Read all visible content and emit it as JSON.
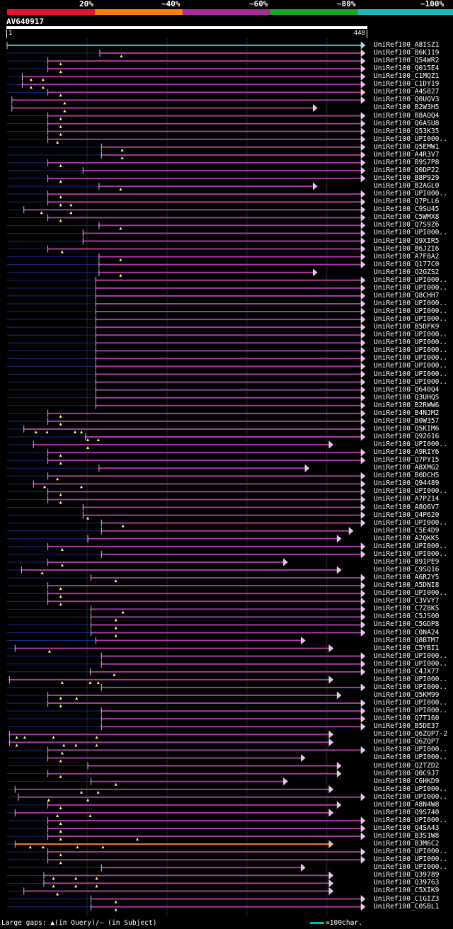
{
  "legend": [
    {
      "label": "20%",
      "color": "#e8142c"
    },
    {
      "label": "~40%",
      "color": "#ff7f0e"
    },
    {
      "label": "~60%",
      "color": "#a52a9c"
    },
    {
      "label": "~80%",
      "color": "#1ea51e"
    },
    {
      "label": "~100%",
      "color": "#1cb8c0"
    }
  ],
  "query": {
    "name": "AV640917",
    "start": "1",
    "end": "448",
    "length": 448
  },
  "footer": {
    "gaps_text": "Large gaps: ▲(in Query)/– (in Subject)",
    "scale_text": "=100char."
  },
  "colors": {
    "line": "#a43ca0",
    "best": "#1ec8c8",
    "orange": "#f08020",
    "dash": "#1a2a7a",
    "tri": "#ffff80",
    "arrow": "#e8c0f0"
  },
  "hits": [
    {
      "name": "UniRef100_A8ISZ1",
      "start": 0,
      "end": 448,
      "color": "best",
      "lead": 0,
      "tris": []
    },
    {
      "name": "UniRef100_B6K119",
      "start": 116,
      "end": 448,
      "color": "line",
      "lead": 1,
      "tris": [
        143
      ]
    },
    {
      "name": "UniRef100_Q54WR2",
      "start": 51,
      "end": 448,
      "color": "line",
      "lead": 1,
      "tris": [
        67
      ]
    },
    {
      "name": "UniRef100_Q015E4",
      "start": 51,
      "end": 448,
      "color": "line",
      "lead": 1,
      "tris": [
        67
      ]
    },
    {
      "name": "UniRef100_C1MQZ1",
      "start": 19,
      "end": 448,
      "color": "line",
      "lead": 1,
      "tris": [
        30,
        45
      ]
    },
    {
      "name": "UniRef100_C1DY19",
      "start": 19,
      "end": 448,
      "color": "line",
      "lead": 1,
      "tris": [
        30,
        45
      ]
    },
    {
      "name": "UniRef100_A4S027",
      "start": 51,
      "end": 448,
      "color": "line",
      "lead": 1,
      "tris": [
        67
      ]
    },
    {
      "name": "UniRef100_Q0UQV3",
      "start": 6,
      "end": 448,
      "color": "line",
      "lead": 0,
      "tris": [
        72
      ]
    },
    {
      "name": "UniRef100_B2W3H5",
      "start": 6,
      "end": 388,
      "color": "line",
      "lead": 0,
      "tris": [
        72
      ]
    },
    {
      "name": "UniRef100_B8AQQ4",
      "start": 51,
      "end": 448,
      "color": "line",
      "lead": 1,
      "tris": [
        67
      ]
    },
    {
      "name": "UniRef100_Q6ASU8",
      "start": 51,
      "end": 448,
      "color": "line",
      "lead": 1,
      "tris": [
        67
      ]
    },
    {
      "name": "UniRef100_Q53K35",
      "start": 51,
      "end": 448,
      "color": "line",
      "lead": 1,
      "tris": [
        67
      ]
    },
    {
      "name": "UniRef100_UPI000..",
      "start": 51,
      "end": 448,
      "color": "line",
      "lead": 1,
      "tris": [
        63
      ]
    },
    {
      "name": "UniRef100_Q5EMW1",
      "start": 118,
      "end": 448,
      "color": "line",
      "lead": 1,
      "tris": [
        144
      ]
    },
    {
      "name": "UniRef100_A4R3V7",
      "start": 118,
      "end": 448,
      "color": "line",
      "lead": 1,
      "tris": [
        144
      ]
    },
    {
      "name": "UniRef100_B9S7P8",
      "start": 51,
      "end": 448,
      "color": "line",
      "lead": 1,
      "tris": [
        67
      ]
    },
    {
      "name": "UniRef100_Q0DP22",
      "start": 95,
      "end": 448,
      "color": "line",
      "lead": 1,
      "tris": []
    },
    {
      "name": "UniRef100_B8P929",
      "start": 51,
      "end": 448,
      "color": "line",
      "lead": 1,
      "tris": [
        67
      ]
    },
    {
      "name": "UniRef100_B2AGL0",
      "start": 115,
      "end": 388,
      "color": "line",
      "lead": 1,
      "tris": [
        142
      ]
    },
    {
      "name": "UniRef100_UPI000..",
      "start": 51,
      "end": 448,
      "color": "line",
      "lead": 1,
      "tris": [
        67
      ]
    },
    {
      "name": "UniRef100_Q7PLL6",
      "start": 51,
      "end": 448,
      "color": "line",
      "lead": 1,
      "tris": [
        67,
        80
      ]
    },
    {
      "name": "UniRef100_C9SU45",
      "start": 21,
      "end": 448,
      "color": "line",
      "lead": 1,
      "tris": [
        43,
        80
      ]
    },
    {
      "name": "UniRef100_C5WMX8",
      "start": 51,
      "end": 448,
      "color": "line",
      "lead": 1,
      "tris": [
        67
      ]
    },
    {
      "name": "UniRef100_Q7S9Z6",
      "start": 115,
      "end": 448,
      "color": "line",
      "lead": 1,
      "tris": [
        142
      ]
    },
    {
      "name": "UniRef100_UPI000..",
      "start": 95,
      "end": 448,
      "color": "line",
      "lead": 1,
      "tris": []
    },
    {
      "name": "UniRef100_Q9XIR5",
      "start": 95,
      "end": 448,
      "color": "line",
      "lead": 1,
      "tris": []
    },
    {
      "name": "UniRef100_B6JZI6",
      "start": 51,
      "end": 448,
      "color": "line",
      "lead": 1,
      "tris": [
        69
      ]
    },
    {
      "name": "UniRef100_A7F8A2",
      "start": 115,
      "end": 448,
      "color": "line",
      "lead": 1,
      "tris": [
        142
      ]
    },
    {
      "name": "UniRef100_Q177C0",
      "start": 115,
      "end": 448,
      "color": "line",
      "lead": 1,
      "tris": []
    },
    {
      "name": "UniRef100_Q2GZS2",
      "start": 115,
      "end": 388,
      "color": "line",
      "lead": 1,
      "tris": [
        142
      ]
    },
    {
      "name": "UniRef100_UPI000..",
      "start": 111,
      "end": 448,
      "color": "line",
      "lead": 1,
      "tris": []
    },
    {
      "name": "UniRef100_UPI000..",
      "start": 111,
      "end": 448,
      "color": "line",
      "lead": 1,
      "tris": []
    },
    {
      "name": "UniRef100_Q8CHH7",
      "start": 111,
      "end": 448,
      "color": "line",
      "lead": 1,
      "tris": []
    },
    {
      "name": "UniRef100_UPI000..",
      "start": 111,
      "end": 448,
      "color": "line",
      "lead": 1,
      "tris": []
    },
    {
      "name": "UniRef100_UPI000..",
      "start": 111,
      "end": 448,
      "color": "line",
      "lead": 1,
      "tris": []
    },
    {
      "name": "UniRef100_UPI000..",
      "start": 111,
      "end": 448,
      "color": "line",
      "lead": 1,
      "tris": []
    },
    {
      "name": "UniRef100_B5DFK9",
      "start": 111,
      "end": 448,
      "color": "line",
      "lead": 1,
      "tris": []
    },
    {
      "name": "UniRef100_UPI000..",
      "start": 111,
      "end": 448,
      "color": "line",
      "lead": 1,
      "tris": []
    },
    {
      "name": "UniRef100_UPI000..",
      "start": 111,
      "end": 448,
      "color": "line",
      "lead": 1,
      "tris": []
    },
    {
      "name": "UniRef100_UPI000..",
      "start": 111,
      "end": 448,
      "color": "line",
      "lead": 1,
      "tris": []
    },
    {
      "name": "UniRef100_UPI000..",
      "start": 111,
      "end": 448,
      "color": "line",
      "lead": 1,
      "tris": []
    },
    {
      "name": "UniRef100_UPI000..",
      "start": 111,
      "end": 448,
      "color": "line",
      "lead": 1,
      "tris": []
    },
    {
      "name": "UniRef100_UPI000..",
      "start": 111,
      "end": 448,
      "color": "line",
      "lead": 1,
      "tris": []
    },
    {
      "name": "UniRef100_UPI000..",
      "start": 111,
      "end": 448,
      "color": "line",
      "lead": 1,
      "tris": []
    },
    {
      "name": "UniRef100_Q640Q4",
      "start": 111,
      "end": 448,
      "color": "line",
      "lead": 1,
      "tris": []
    },
    {
      "name": "UniRef100_Q3UHQ5",
      "start": 111,
      "end": 448,
      "color": "line",
      "lead": 1,
      "tris": []
    },
    {
      "name": "UniRef100_B2RWW6",
      "start": 111,
      "end": 448,
      "color": "line",
      "lead": 1,
      "tris": []
    },
    {
      "name": "UniRef100_B4NJM2",
      "start": 51,
      "end": 448,
      "color": "line",
      "lead": 1,
      "tris": [
        67
      ]
    },
    {
      "name": "UniRef100_B0W357",
      "start": 51,
      "end": 448,
      "color": "line",
      "lead": 1,
      "tris": [
        67
      ]
    },
    {
      "name": "UniRef100_Q5KIM6",
      "start": 21,
      "end": 448,
      "color": "line",
      "lead": 1,
      "tris": [
        36,
        50,
        85,
        93
      ]
    },
    {
      "name": "UniRef100_Q92616",
      "start": 98,
      "end": 448,
      "color": "line",
      "lead": 1,
      "tris": [
        101,
        114
      ]
    },
    {
      "name": "UniRef100_UPI000..",
      "start": 33,
      "end": 408,
      "color": "line",
      "lead": 1,
      "tris": [
        101
      ]
    },
    {
      "name": "UniRef100_A9RIY6",
      "start": 51,
      "end": 448,
      "color": "line",
      "lead": 1,
      "tris": [
        67
      ]
    },
    {
      "name": "UniRef100_Q7PY15",
      "start": 51,
      "end": 448,
      "color": "line",
      "lead": 1,
      "tris": [
        67
      ]
    },
    {
      "name": "UniRef100_A8XMG2",
      "start": 115,
      "end": 378,
      "color": "line",
      "lead": 1,
      "tris": []
    },
    {
      "name": "UniRef100_B0DCH5",
      "start": 51,
      "end": 448,
      "color": "line",
      "lead": 1,
      "tris": [
        63
      ]
    },
    {
      "name": "UniRef100_Q94489",
      "start": 33,
      "end": 448,
      "color": "line",
      "lead": 1,
      "tris": [
        47,
        93
      ]
    },
    {
      "name": "UniRef100_UPI000..",
      "start": 51,
      "end": 448,
      "color": "line",
      "lead": 1,
      "tris": [
        67
      ]
    },
    {
      "name": "UniRef100_A7PZ14",
      "start": 51,
      "end": 448,
      "color": "line",
      "lead": 1,
      "tris": [
        67
      ]
    },
    {
      "name": "UniRef100_A8Q6V7",
      "start": 95,
      "end": 448,
      "color": "line",
      "lead": 1,
      "tris": []
    },
    {
      "name": "UniRef100_Q4P620",
      "start": 95,
      "end": 448,
      "color": "line",
      "lead": 1,
      "tris": [
        101
      ]
    },
    {
      "name": "UniRef100_UPI000..",
      "start": 118,
      "end": 448,
      "color": "line",
      "lead": 1,
      "tris": [
        145
      ]
    },
    {
      "name": "UniRef100_C5E4D9",
      "start": 118,
      "end": 433,
      "color": "line",
      "lead": 1,
      "tris": []
    },
    {
      "name": "UniRef100_A2QKK5",
      "start": 101,
      "end": 418,
      "color": "line",
      "lead": 1,
      "tris": []
    },
    {
      "name": "UniRef100_UPI000..",
      "start": 51,
      "end": 448,
      "color": "line",
      "lead": 1,
      "tris": [
        69
      ]
    },
    {
      "name": "UniRef100_UPI000..",
      "start": 118,
      "end": 448,
      "color": "line",
      "lead": 1,
      "tris": []
    },
    {
      "name": "UniRef100_B9IPE9",
      "start": 51,
      "end": 351,
      "color": "line",
      "lead": 1,
      "tris": [
        69
      ]
    },
    {
      "name": "UniRef100_C9SQ16",
      "start": 18,
      "end": 418,
      "color": "line",
      "lead": 1,
      "tris": [
        44
      ]
    },
    {
      "name": "UniRef100_A6R2Y5",
      "start": 105,
      "end": 448,
      "color": "line",
      "lead": 1,
      "tris": [
        136
      ]
    },
    {
      "name": "UniRef100_A5DNI8",
      "start": 51,
      "end": 448,
      "color": "line",
      "lead": 1,
      "tris": [
        67
      ]
    },
    {
      "name": "UniRef100_UPI000..",
      "start": 51,
      "end": 448,
      "color": "line",
      "lead": 1,
      "tris": [
        67
      ]
    },
    {
      "name": "UniRef100_C3VVY7",
      "start": 51,
      "end": 448,
      "color": "line",
      "lead": 1,
      "tris": [
        67
      ]
    },
    {
      "name": "UniRef100_C7Z8K5",
      "start": 105,
      "end": 448,
      "color": "line",
      "lead": 1,
      "tris": [
        145
      ]
    },
    {
      "name": "UniRef100_C5JS00",
      "start": 105,
      "end": 448,
      "color": "line",
      "lead": 1,
      "tris": [
        136
      ]
    },
    {
      "name": "UniRef100_C5GDP8",
      "start": 105,
      "end": 448,
      "color": "line",
      "lead": 1,
      "tris": [
        136
      ]
    },
    {
      "name": "UniRef100_C0NA24",
      "start": 105,
      "end": 448,
      "color": "line",
      "lead": 1,
      "tris": [
        136
      ]
    },
    {
      "name": "UniRef100_Q8BTM7",
      "start": 111,
      "end": 373,
      "color": "line",
      "lead": 1,
      "tris": []
    },
    {
      "name": "UniRef100_C5YBI1",
      "start": 10,
      "end": 408,
      "color": "line",
      "lead": 1,
      "tris": [
        53
      ]
    },
    {
      "name": "UniRef100_UPI000..",
      "start": 118,
      "end": 448,
      "color": "line",
      "lead": 1,
      "tris": []
    },
    {
      "name": "UniRef100_UPI000..",
      "start": 118,
      "end": 448,
      "color": "line",
      "lead": 1,
      "tris": []
    },
    {
      "name": "UniRef100_C4JX77",
      "start": 104,
      "end": 448,
      "color": "line",
      "lead": 1,
      "tris": [
        134
      ]
    },
    {
      "name": "UniRef100_UPI000..",
      "start": 3,
      "end": 408,
      "color": "line",
      "lead": 1,
      "tris": [
        69,
        104,
        114
      ]
    },
    {
      "name": "UniRef100_UPI000..",
      "start": 118,
      "end": 448,
      "color": "line",
      "lead": 1,
      "tris": []
    },
    {
      "name": "UniRef100_Q5KM99",
      "start": 51,
      "end": 418,
      "color": "line",
      "lead": 1,
      "tris": [
        67,
        87
      ]
    },
    {
      "name": "UniRef100_UPI000..",
      "start": 51,
      "end": 448,
      "color": "line",
      "lead": 1,
      "tris": [
        67
      ]
    },
    {
      "name": "UniRef100_UPI000..",
      "start": 118,
      "end": 448,
      "color": "line",
      "lead": 1,
      "tris": []
    },
    {
      "name": "UniRef100_Q7T160",
      "start": 118,
      "end": 448,
      "color": "line",
      "lead": 1,
      "tris": []
    },
    {
      "name": "UniRef100_B5DE37",
      "start": 118,
      "end": 448,
      "color": "line",
      "lead": 1,
      "tris": []
    },
    {
      "name": "UniRef100_Q6ZQP7-2",
      "start": 3,
      "end": 408,
      "color": "line",
      "lead": 1,
      "tris": [
        12,
        22,
        58,
        112
      ]
    },
    {
      "name": "UniRef100_Q6ZQP7",
      "start": 3,
      "end": 408,
      "color": "line",
      "lead": 1,
      "tris": [
        12,
        71,
        86,
        112
      ]
    },
    {
      "name": "UniRef100_UPI000..",
      "start": 51,
      "end": 448,
      "color": "line",
      "lead": 1,
      "tris": [
        69
      ]
    },
    {
      "name": "UniRef100_UPI000..",
      "start": 51,
      "end": 373,
      "color": "line",
      "lead": 1,
      "tris": [
        67
      ]
    },
    {
      "name": "UniRef100_Q2TZD2",
      "start": 101,
      "end": 418,
      "color": "line",
      "lead": 1,
      "tris": []
    },
    {
      "name": "UniRef100_Q0C9J7",
      "start": 51,
      "end": 418,
      "color": "line",
      "lead": 1,
      "tris": [
        67
      ]
    },
    {
      "name": "UniRef100_C6HKD9",
      "start": 105,
      "end": 351,
      "color": "line",
      "lead": 1,
      "tris": [
        136
      ]
    },
    {
      "name": "UniRef100_UPI000..",
      "start": 10,
      "end": 408,
      "color": "line",
      "lead": 1,
      "tris": [
        93,
        114
      ]
    },
    {
      "name": "UniRef100_UPI000..",
      "start": 14,
      "end": 448,
      "color": "line",
      "lead": 1,
      "tris": [
        52,
        101
      ]
    },
    {
      "name": "UniRef100_A8N4W8",
      "start": 51,
      "end": 418,
      "color": "line",
      "lead": 1,
      "tris": [
        67
      ]
    },
    {
      "name": "UniRef100_Q9S740",
      "start": 10,
      "end": 408,
      "color": "line",
      "lead": 1,
      "tris": [
        63,
        104
      ]
    },
    {
      "name": "UniRef100_UPI000..",
      "start": 51,
      "end": 448,
      "color": "line",
      "lead": 1,
      "tris": [
        67
      ]
    },
    {
      "name": "UniRef100_Q4SA43",
      "start": 51,
      "end": 448,
      "color": "line",
      "lead": 1,
      "tris": [
        67
      ]
    },
    {
      "name": "UniRef100_B3S1W8",
      "start": 51,
      "end": 448,
      "color": "line",
      "lead": 1,
      "tris": [
        67,
        163
      ]
    },
    {
      "name": "UniRef100_B3M6C2",
      "start": 10,
      "end": 408,
      "color": "orange",
      "lead": 1,
      "tris": [
        29,
        45,
        88,
        120
      ]
    },
    {
      "name": "UniRef100_UPI000..",
      "start": 51,
      "end": 448,
      "color": "line",
      "lead": 1,
      "tris": [
        67
      ]
    },
    {
      "name": "UniRef100_UPI000..",
      "start": 51,
      "end": 448,
      "color": "line",
      "lead": 1,
      "tris": [
        67
      ]
    },
    {
      "name": "UniRef100_UPI000..",
      "start": 118,
      "end": 373,
      "color": "line",
      "lead": 1,
      "tris": []
    },
    {
      "name": "UniRef100_Q39789",
      "start": 46,
      "end": 408,
      "color": "line",
      "lead": 1,
      "tris": [
        58,
        86,
        112
      ]
    },
    {
      "name": "UniRef100_Q39763",
      "start": 46,
      "end": 408,
      "color": "line",
      "lead": 1,
      "tris": [
        58,
        86,
        112
      ]
    },
    {
      "name": "UniRef100_C5XIK9",
      "start": 21,
      "end": 408,
      "color": "line",
      "lead": 1,
      "tris": [
        63
      ]
    },
    {
      "name": "UniRef100_C1GIZ3",
      "start": 105,
      "end": 448,
      "color": "line",
      "lead": 1,
      "tris": [
        136
      ]
    },
    {
      "name": "UniRef100_C0SBL1",
      "start": 105,
      "end": 448,
      "color": "line",
      "lead": 1,
      "tris": [
        136
      ]
    }
  ]
}
